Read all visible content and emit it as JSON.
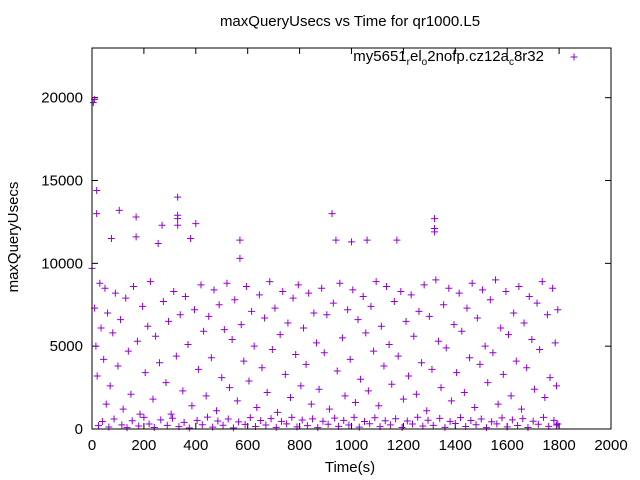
{
  "chart_data": {
    "type": "scatter",
    "title": "maxQueryUsecs vs Time for qr1000.L5",
    "xlabel": "Time(s)",
    "ylabel": "maxQueryUsecs",
    "xlim": [
      0,
      2000
    ],
    "ylim": [
      0,
      23000
    ],
    "xticks": [
      0,
      200,
      400,
      600,
      800,
      1000,
      1200,
      1400,
      1600,
      1800,
      2000
    ],
    "yticks": [
      0,
      5000,
      10000,
      15000,
      20000
    ],
    "grid": false,
    "legend_position": "top-right",
    "marker": "plus",
    "series": [
      {
        "name_parts": [
          {
            "text": "my5651",
            "sub": false
          },
          {
            "text": "r",
            "sub": true
          },
          {
            "text": "el",
            "sub": false
          },
          {
            "text": "o",
            "sub": true
          },
          {
            "text": "2nofp.cz12a",
            "sub": false
          },
          {
            "text": "c",
            "sub": true
          },
          {
            "text": "8r32",
            "sub": false
          }
        ],
        "color": "#9400d3",
        "points": [
          [
            5,
            19700
          ],
          [
            10,
            19900
          ],
          [
            18,
            14400
          ],
          [
            18,
            13000
          ],
          [
            75,
            11500
          ],
          [
            105,
            13200
          ],
          [
            170,
            12800
          ],
          [
            170,
            11600
          ],
          [
            255,
            11200
          ],
          [
            270,
            12300
          ],
          [
            330,
            14000
          ],
          [
            330,
            12900
          ],
          [
            330,
            12700
          ],
          [
            330,
            12300
          ],
          [
            380,
            11500
          ],
          [
            400,
            12400
          ],
          [
            570,
            11400
          ],
          [
            570,
            10300
          ],
          [
            925,
            13000
          ],
          [
            940,
            11400
          ],
          [
            1000,
            11300
          ],
          [
            1060,
            11400
          ],
          [
            1175,
            11400
          ],
          [
            1320,
            12700
          ],
          [
            1320,
            12100
          ],
          [
            1320,
            11900
          ],
          [
            0,
            9700
          ],
          [
            10,
            7300
          ],
          [
            15,
            5000
          ],
          [
            20,
            3200
          ],
          [
            30,
            8800
          ],
          [
            35,
            6100
          ],
          [
            45,
            4200
          ],
          [
            50,
            8500
          ],
          [
            55,
            1500
          ],
          [
            60,
            7000
          ],
          [
            70,
            2600
          ],
          [
            80,
            5800
          ],
          [
            90,
            8200
          ],
          [
            100,
            3800
          ],
          [
            110,
            6600
          ],
          [
            120,
            1200
          ],
          [
            130,
            7900
          ],
          [
            140,
            4700
          ],
          [
            150,
            2100
          ],
          [
            160,
            8600
          ],
          [
            175,
            5300
          ],
          [
            185,
            900
          ],
          [
            195,
            7400
          ],
          [
            205,
            3400
          ],
          [
            215,
            6200
          ],
          [
            225,
            8900
          ],
          [
            235,
            1800
          ],
          [
            245,
            5600
          ],
          [
            260,
            4000
          ],
          [
            275,
            7700
          ],
          [
            285,
            2800
          ],
          [
            295,
            6500
          ],
          [
            305,
            900
          ],
          [
            315,
            8300
          ],
          [
            325,
            4400
          ],
          [
            340,
            6900
          ],
          [
            350,
            2300
          ],
          [
            360,
            8000
          ],
          [
            370,
            5100
          ],
          [
            385,
            1400
          ],
          [
            395,
            7200
          ],
          [
            410,
            3600
          ],
          [
            420,
            8700
          ],
          [
            430,
            5900
          ],
          [
            440,
            2000
          ],
          [
            450,
            6800
          ],
          [
            460,
            4300
          ],
          [
            470,
            8400
          ],
          [
            480,
            1100
          ],
          [
            490,
            7500
          ],
          [
            500,
            3100
          ],
          [
            510,
            6000
          ],
          [
            520,
            8800
          ],
          [
            530,
            2500
          ],
          [
            540,
            5400
          ],
          [
            550,
            7800
          ],
          [
            560,
            1700
          ],
          [
            575,
            6300
          ],
          [
            585,
            4100
          ],
          [
            595,
            8600
          ],
          [
            605,
            2900
          ],
          [
            615,
            7100
          ],
          [
            625,
            5000
          ],
          [
            635,
            1300
          ],
          [
            645,
            8100
          ],
          [
            655,
            3700
          ],
          [
            665,
            6700
          ],
          [
            675,
            2200
          ],
          [
            685,
            8900
          ],
          [
            695,
            4800
          ],
          [
            705,
            7300
          ],
          [
            715,
            1000
          ],
          [
            725,
            5700
          ],
          [
            735,
            8300
          ],
          [
            745,
            3300
          ],
          [
            755,
            6400
          ],
          [
            765,
            1900
          ],
          [
            775,
            7900
          ],
          [
            785,
            4500
          ],
          [
            795,
            8700
          ],
          [
            805,
            2600
          ],
          [
            815,
            6100
          ],
          [
            825,
            3900
          ],
          [
            835,
            8200
          ],
          [
            845,
            1500
          ],
          [
            855,
            7000
          ],
          [
            865,
            5200
          ],
          [
            875,
            2400
          ],
          [
            885,
            8500
          ],
          [
            895,
            4600
          ],
          [
            905,
            6900
          ],
          [
            915,
            1200
          ],
          [
            930,
            7600
          ],
          [
            945,
            3500
          ],
          [
            955,
            8800
          ],
          [
            965,
            5500
          ],
          [
            975,
            2000
          ],
          [
            985,
            7200
          ],
          [
            995,
            4200
          ],
          [
            1005,
            8400
          ],
          [
            1015,
            1600
          ],
          [
            1025,
            6600
          ],
          [
            1035,
            3000
          ],
          [
            1045,
            8000
          ],
          [
            1055,
            5800
          ],
          [
            1065,
            2300
          ],
          [
            1075,
            7400
          ],
          [
            1085,
            4700
          ],
          [
            1095,
            8900
          ],
          [
            1105,
            1400
          ],
          [
            1115,
            6200
          ],
          [
            1125,
            3800
          ],
          [
            1135,
            8600
          ],
          [
            1145,
            5100
          ],
          [
            1155,
            2700
          ],
          [
            1165,
            7700
          ],
          [
            1180,
            4400
          ],
          [
            1190,
            8300
          ],
          [
            1200,
            1800
          ],
          [
            1210,
            6500
          ],
          [
            1220,
            3200
          ],
          [
            1230,
            8100
          ],
          [
            1240,
            5600
          ],
          [
            1250,
            2100
          ],
          [
            1260,
            7100
          ],
          [
            1270,
            4000
          ],
          [
            1280,
            8700
          ],
          [
            1290,
            1100
          ],
          [
            1300,
            6800
          ],
          [
            1310,
            3600
          ],
          [
            1325,
            9000
          ],
          [
            1335,
            5300
          ],
          [
            1345,
            2500
          ],
          [
            1355,
            7500
          ],
          [
            1365,
            4900
          ],
          [
            1375,
            8500
          ],
          [
            1385,
            1700
          ],
          [
            1395,
            6300
          ],
          [
            1405,
            3400
          ],
          [
            1415,
            8200
          ],
          [
            1425,
            5900
          ],
          [
            1435,
            2200
          ],
          [
            1445,
            7300
          ],
          [
            1455,
            4300
          ],
          [
            1465,
            8800
          ],
          [
            1475,
            1300
          ],
          [
            1485,
            6700
          ],
          [
            1495,
            3900
          ],
          [
            1505,
            8400
          ],
          [
            1515,
            5000
          ],
          [
            1525,
            2800
          ],
          [
            1535,
            7800
          ],
          [
            1545,
            4600
          ],
          [
            1555,
            9000
          ],
          [
            1565,
            1500
          ],
          [
            1575,
            6100
          ],
          [
            1585,
            3300
          ],
          [
            1595,
            8300
          ],
          [
            1605,
            5700
          ],
          [
            1615,
            2000
          ],
          [
            1625,
            7000
          ],
          [
            1635,
            4100
          ],
          [
            1645,
            8600
          ],
          [
            1655,
            1200
          ],
          [
            1665,
            6400
          ],
          [
            1675,
            3700
          ],
          [
            1685,
            8000
          ],
          [
            1695,
            5400
          ],
          [
            1705,
            2400
          ],
          [
            1715,
            7600
          ],
          [
            1725,
            4800
          ],
          [
            1735,
            8900
          ],
          [
            1745,
            1900
          ],
          [
            1755,
            6900
          ],
          [
            1765,
            3100
          ],
          [
            1775,
            8500
          ],
          [
            1785,
            5200
          ],
          [
            1790,
            2600
          ],
          [
            1795,
            7200
          ],
          [
            1795,
            300
          ],
          [
            25,
            200
          ],
          [
            40,
            450
          ],
          [
            65,
            120
          ],
          [
            85,
            600
          ],
          [
            115,
            250
          ],
          [
            135,
            80
          ],
          [
            155,
            500
          ],
          [
            180,
            180
          ],
          [
            200,
            700
          ],
          [
            220,
            300
          ],
          [
            240,
            90
          ],
          [
            265,
            550
          ],
          [
            290,
            220
          ],
          [
            310,
            650
          ],
          [
            335,
            140
          ],
          [
            355,
            400
          ],
          [
            375,
            60
          ],
          [
            405,
            520
          ],
          [
            425,
            260
          ],
          [
            445,
            720
          ],
          [
            465,
            110
          ],
          [
            485,
            480
          ],
          [
            505,
            230
          ],
          [
            525,
            600
          ],
          [
            545,
            70
          ],
          [
            565,
            430
          ],
          [
            590,
            280
          ],
          [
            610,
            690
          ],
          [
            630,
            150
          ],
          [
            650,
            510
          ],
          [
            670,
            240
          ],
          [
            690,
            630
          ],
          [
            710,
            100
          ],
          [
            730,
            460
          ],
          [
            750,
            310
          ],
          [
            770,
            700
          ],
          [
            790,
            130
          ],
          [
            810,
            540
          ],
          [
            830,
            200
          ],
          [
            850,
            610
          ],
          [
            870,
            80
          ],
          [
            890,
            470
          ],
          [
            910,
            290
          ],
          [
            935,
            660
          ],
          [
            950,
            160
          ],
          [
            970,
            520
          ],
          [
            990,
            240
          ],
          [
            1010,
            700
          ],
          [
            1030,
            110
          ],
          [
            1050,
            450
          ],
          [
            1070,
            320
          ],
          [
            1090,
            680
          ],
          [
            1110,
            140
          ],
          [
            1130,
            500
          ],
          [
            1150,
            250
          ],
          [
            1170,
            620
          ],
          [
            1195,
            90
          ],
          [
            1215,
            480
          ],
          [
            1235,
            300
          ],
          [
            1255,
            710
          ],
          [
            1275,
            170
          ],
          [
            1295,
            530
          ],
          [
            1315,
            220
          ],
          [
            1340,
            640
          ],
          [
            1360,
            100
          ],
          [
            1380,
            460
          ],
          [
            1400,
            330
          ],
          [
            1420,
            690
          ],
          [
            1440,
            150
          ],
          [
            1460,
            510
          ],
          [
            1480,
            260
          ],
          [
            1500,
            600
          ],
          [
            1520,
            80
          ],
          [
            1540,
            440
          ],
          [
            1560,
            310
          ],
          [
            1580,
            670
          ],
          [
            1600,
            130
          ],
          [
            1620,
            550
          ],
          [
            1640,
            210
          ],
          [
            1660,
            630
          ],
          [
            1680,
            90
          ],
          [
            1700,
            470
          ],
          [
            1720,
            290
          ],
          [
            1740,
            700
          ],
          [
            1760,
            160
          ],
          [
            1780,
            520
          ],
          [
            1790,
            240
          ]
        ]
      }
    ]
  }
}
